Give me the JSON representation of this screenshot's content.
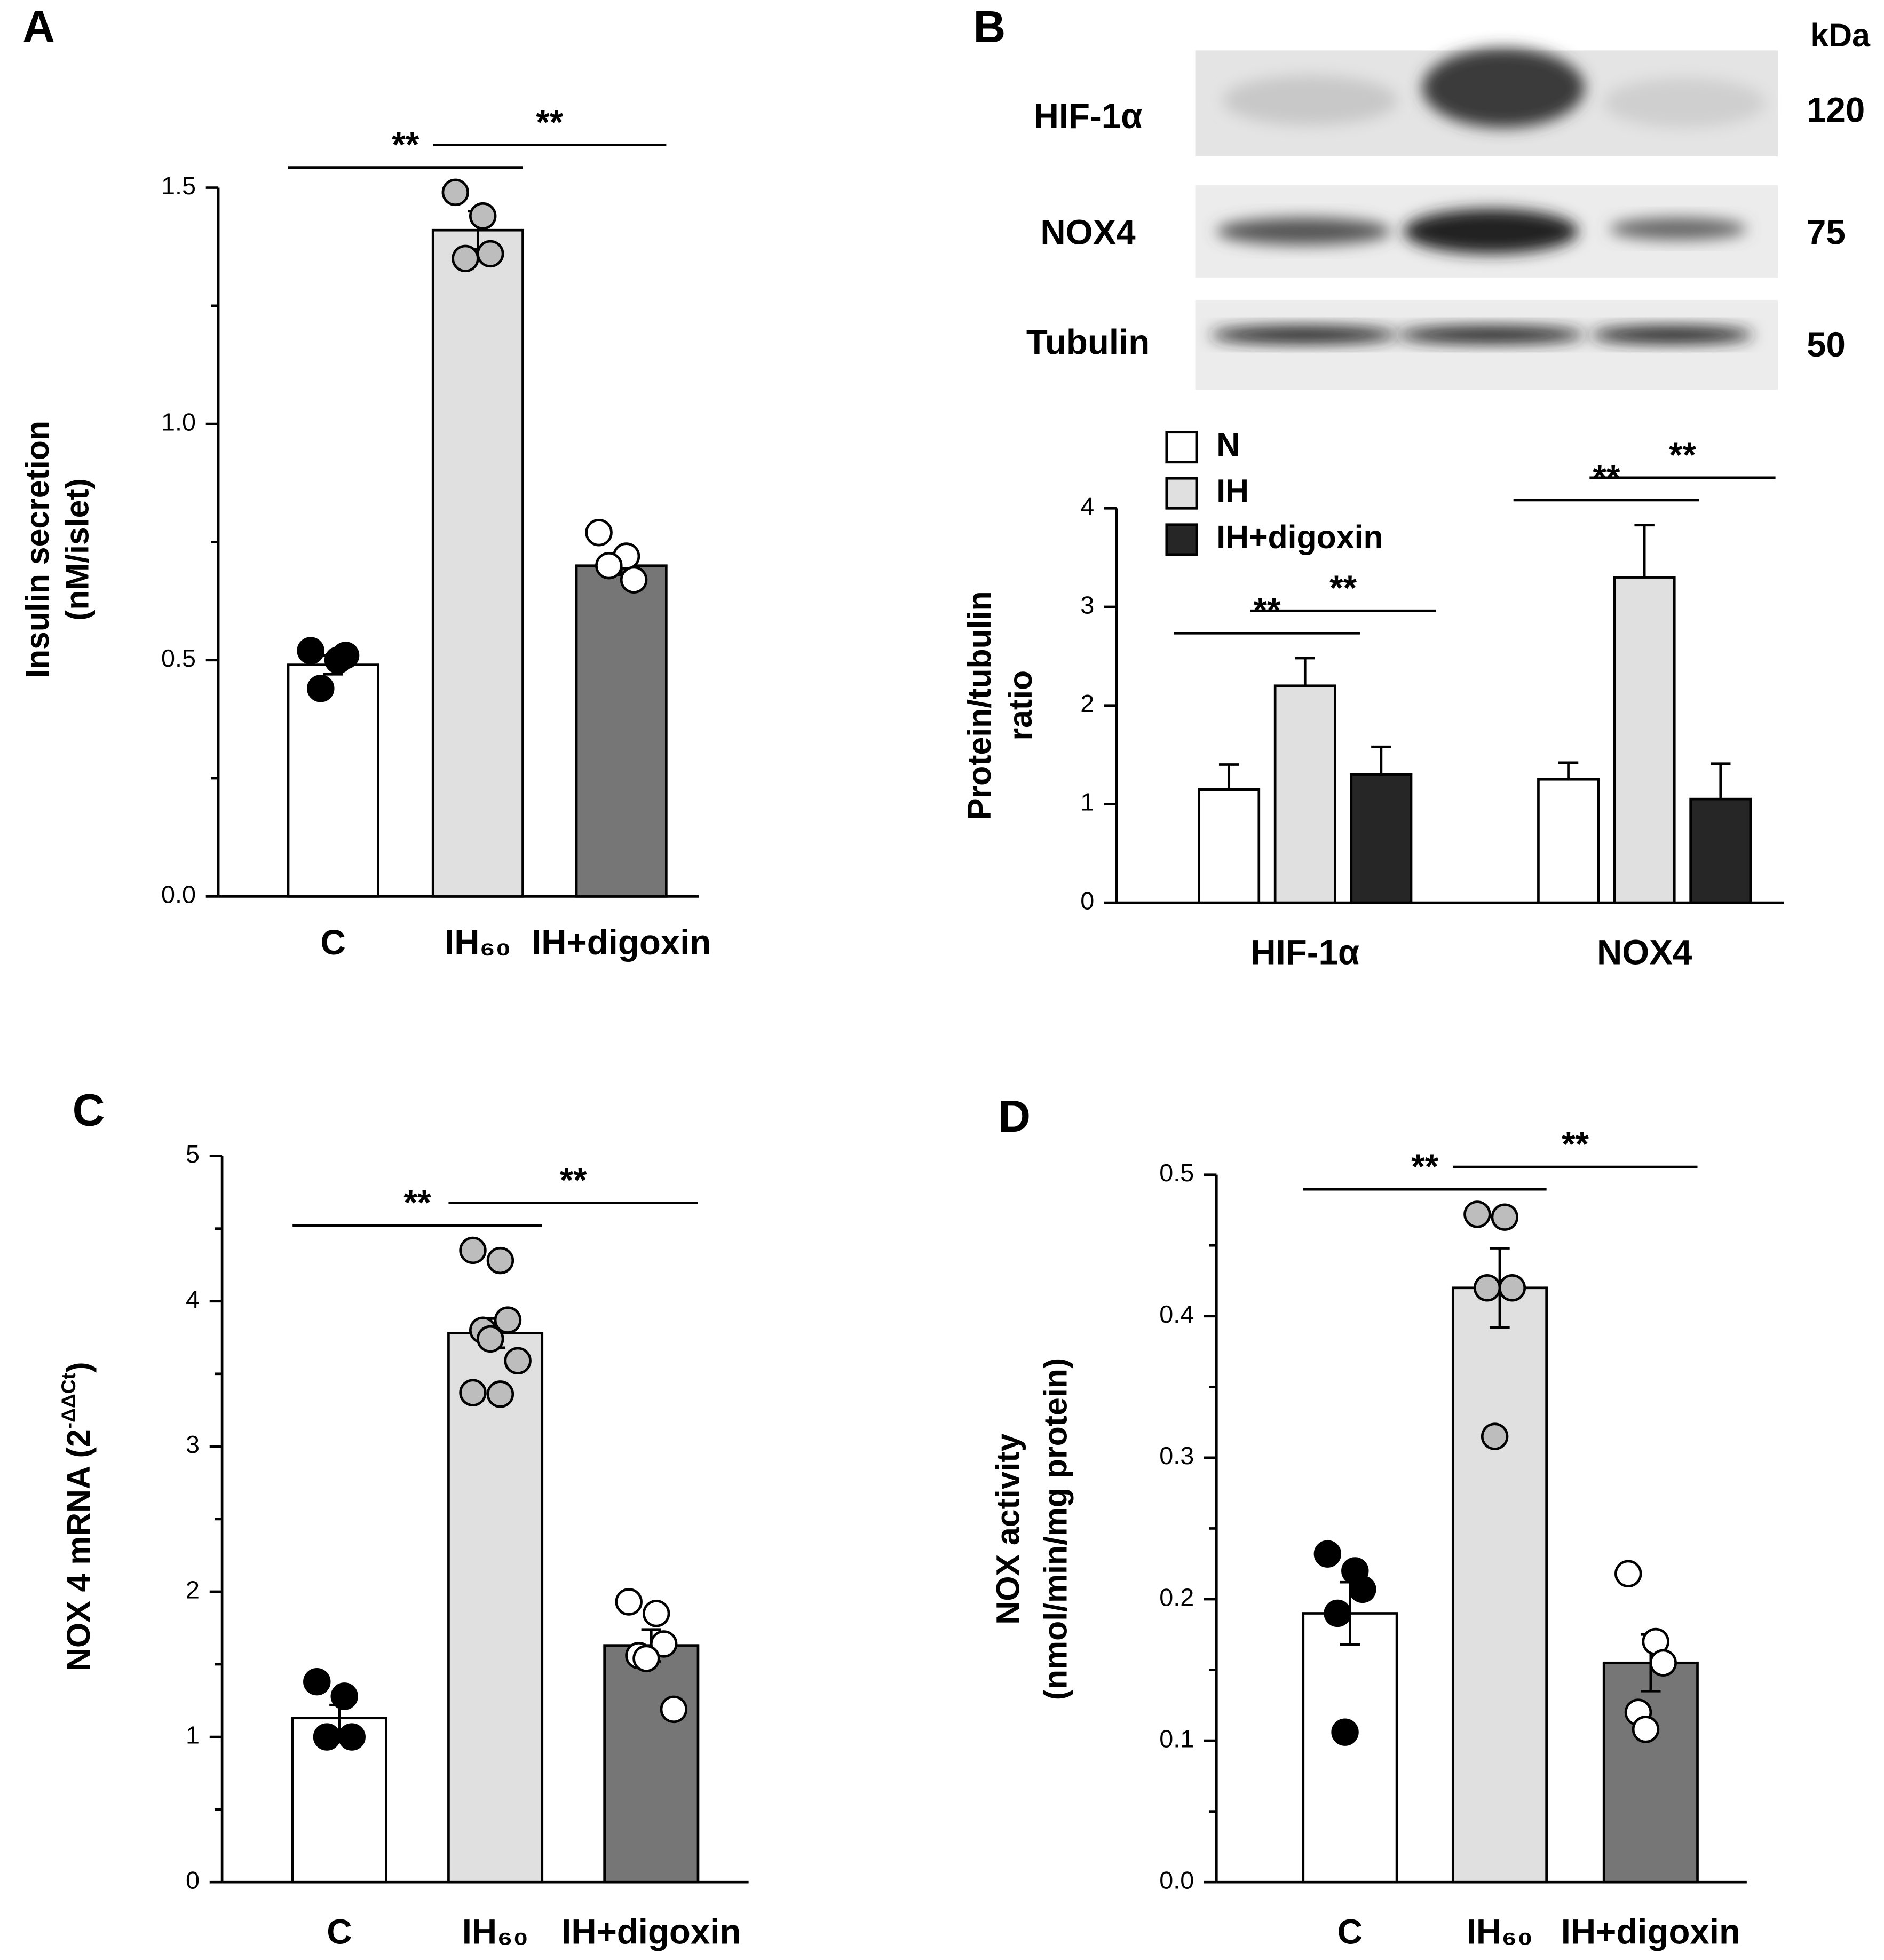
{
  "chart_data": [
    {
      "type": "bar",
      "panel_label": "A",
      "ylabel": [
        "Insulin secretion",
        "(nM/islet)"
      ],
      "categories": [
        "C",
        "IH₆₀",
        "IH+digoxin"
      ],
      "values": [
        0.49,
        1.41,
        0.7
      ],
      "errors": [
        0.02,
        0.04,
        0.02
      ],
      "colors": [
        "#ffffff",
        "#e0e0e0",
        "#767676"
      ],
      "point_colors": [
        "#000000",
        "#bdbdbd",
        "#ffffff"
      ],
      "points": [
        [
          0.52,
          0.5,
          0.51,
          0.44
        ],
        [
          1.49,
          1.44,
          1.36,
          1.35
        ],
        [
          0.77,
          0.72,
          0.67,
          0.7
        ]
      ],
      "ylim": [
        0,
        1.5
      ],
      "yticks": [
        {
          "value": 0,
          "label": "0.0"
        },
        0.5,
        {
          "value": 1,
          "label": "1.0"
        },
        1.5
      ],
      "yminor": [
        0.25,
        0.75,
        1.25
      ],
      "significance": [
        {
          "label": "**",
          "between": [
            0,
            1
          ]
        },
        {
          "label": "**",
          "between": [
            1,
            2
          ]
        }
      ]
    },
    {
      "type": "grouped_bar",
      "panel_label": "B",
      "ylabel": [
        "Protein/tubulin",
        "ratio"
      ],
      "categories": [
        "HIF-1α",
        "NOX4"
      ],
      "series": [
        {
          "name": "N",
          "color": "#ffffff",
          "values": [
            1.15,
            1.25
          ],
          "errors": [
            0.25,
            0.17
          ]
        },
        {
          "name": "IH",
          "color": "#e0e0e0",
          "values": [
            2.2,
            3.3
          ],
          "errors": [
            0.28,
            0.53
          ]
        },
        {
          "name": "IH+digoxin",
          "color": "#262626",
          "values": [
            1.3,
            1.05
          ],
          "errors": [
            0.28,
            0.36
          ]
        }
      ],
      "ylim": [
        0,
        4
      ],
      "yticks": [
        0,
        1,
        2,
        3,
        4
      ],
      "significance": [
        {
          "label": "**",
          "category": 0,
          "between": [
            0,
            1
          ]
        },
        {
          "label": "**",
          "category": 0,
          "between": [
            1,
            2
          ]
        },
        {
          "label": "**",
          "category": 1,
          "between": [
            0,
            1
          ]
        },
        {
          "label": "**",
          "category": 1,
          "between": [
            1,
            2
          ]
        }
      ],
      "blot": {
        "unit_label": "kDa",
        "rows": [
          {
            "label": "HIF-1α",
            "kda": 120
          },
          {
            "label": "NOX4",
            "kda": 75
          },
          {
            "label": "Tubulin",
            "kda": 50
          }
        ]
      }
    },
    {
      "type": "bar",
      "panel_label": "C",
      "ylabel": "NOX 4 mRNA (2",
      "ylabel_sup": "-ΔΔCt",
      "ylabel_end": ")",
      "categories": [
        "C",
        "IH₆₀",
        "IH+digoxin"
      ],
      "values": [
        1.13,
        3.78,
        1.63
      ],
      "errors": [
        0.09,
        0.1,
        0.11
      ],
      "colors": [
        "#ffffff",
        "#e0e0e0",
        "#767676"
      ],
      "point_colors": [
        "#000000",
        "#bdbdbd",
        "#ffffff"
      ],
      "points": [
        [
          1.38,
          1.28,
          1.0,
          1.0
        ],
        [
          4.35,
          4.28,
          3.87,
          3.8,
          3.74,
          3.59,
          3.37,
          3.36
        ],
        [
          1.93,
          1.85,
          1.64,
          1.56,
          1.54,
          1.19
        ]
      ],
      "ylim": [
        0,
        5
      ],
      "yticks": [
        0,
        1,
        2,
        3,
        4,
        5
      ],
      "yminor": [
        0.5,
        1.5,
        2.5,
        3.5,
        4.5
      ],
      "significance": [
        {
          "label": "**",
          "between": [
            0,
            1
          ]
        },
        {
          "label": "**",
          "between": [
            1,
            2
          ]
        }
      ]
    },
    {
      "type": "bar",
      "panel_label": "D",
      "ylabel": [
        "NOX activity",
        "(nmol/min/mg protein)"
      ],
      "categories": [
        "C",
        "IH₆₀",
        "IH+digoxin"
      ],
      "values": [
        0.19,
        0.42,
        0.155
      ],
      "errors": [
        0.022,
        0.028,
        0.02
      ],
      "colors": [
        "#ffffff",
        "#e0e0e0",
        "#767676"
      ],
      "point_colors": [
        "#000000",
        "#bdbdbd",
        "#ffffff"
      ],
      "points": [
        [
          0.232,
          0.22,
          0.207,
          0.19,
          0.106
        ],
        [
          0.472,
          0.47,
          0.42,
          0.42,
          0.315
        ],
        [
          0.218,
          0.17,
          0.155,
          0.12,
          0.108
        ]
      ],
      "ylim": [
        0,
        0.5
      ],
      "yticks": [
        {
          "value": 0,
          "label": "0.0"
        },
        0.1,
        0.2,
        0.3,
        0.4,
        0.5
      ],
      "yminor": [
        0.05,
        0.15,
        0.25,
        0.35,
        0.45
      ],
      "significance": [
        {
          "label": "**",
          "between": [
            0,
            1
          ]
        },
        {
          "label": "**",
          "between": [
            1,
            2
          ]
        }
      ]
    }
  ]
}
